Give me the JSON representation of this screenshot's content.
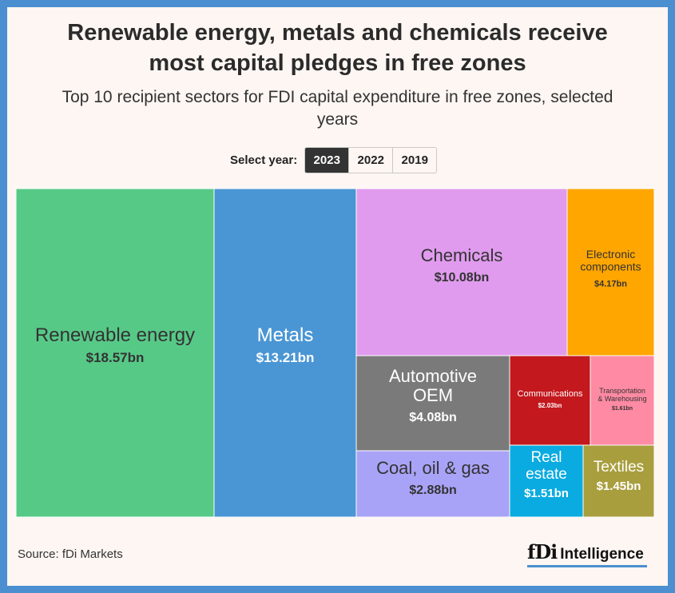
{
  "header": {
    "title_line1": "Renewable energy, metals and chemicals receive",
    "title_line2": "most capital pledges in free zones",
    "subtitle_line1": "Top 10 recipient sectors for FDI capital expenditure in free zones, selected",
    "subtitle_line2": "years"
  },
  "year_selector": {
    "label": "Select year:",
    "options": [
      "2023",
      "2022",
      "2019"
    ],
    "selected": "2023"
  },
  "chart_data": {
    "type": "treemap",
    "unit": "$bn",
    "year": "2023",
    "items": [
      {
        "name": "Renewable energy",
        "value": 18.57,
        "label": "$18.57bn",
        "color": "#57c987",
        "text_color": "#333333"
      },
      {
        "name": "Metals",
        "value": 13.21,
        "label": "$13.21bn",
        "color": "#4a96d4",
        "text_color": "#ffffff"
      },
      {
        "name": "Chemicals",
        "value": 10.08,
        "label": "$10.08bn",
        "color": "#e09bee",
        "text_color": "#333333"
      },
      {
        "name": "Electronic components",
        "value": 4.17,
        "label": "$4.17bn",
        "color": "#ffa600",
        "text_color": "#333333"
      },
      {
        "name": "Automotive OEM",
        "value": 4.08,
        "label": "$4.08bn",
        "color": "#7a7a7a",
        "text_color": "#ffffff"
      },
      {
        "name": "Coal, oil & gas",
        "value": 2.88,
        "label": "$2.88bn",
        "color": "#a9a3f7",
        "text_color": "#333333"
      },
      {
        "name": "Communications",
        "value": 2.03,
        "label": "$2.03bn",
        "color": "#c3181d",
        "text_color": "#ffffff"
      },
      {
        "name": "Transportation & Warehousing",
        "value": 1.61,
        "label": "$1.61bn",
        "color": "#ff8aa3",
        "text_color": "#333333"
      },
      {
        "name": "Real estate",
        "value": 1.51,
        "label": "$1.51bn",
        "color": "#0aabe0",
        "text_color": "#ffffff"
      },
      {
        "name": "Textiles",
        "value": 1.45,
        "label": "$1.45bn",
        "color": "#a99e3e",
        "text_color": "#ffffff"
      }
    ]
  },
  "footer": {
    "source": "Source: fDi Markets",
    "logo_fdi": "fDi",
    "logo_intelligence": "Intelligence"
  },
  "colors": {
    "border": "#4b8fd0",
    "background": "#fdf6f2",
    "active_button": "#333333"
  }
}
